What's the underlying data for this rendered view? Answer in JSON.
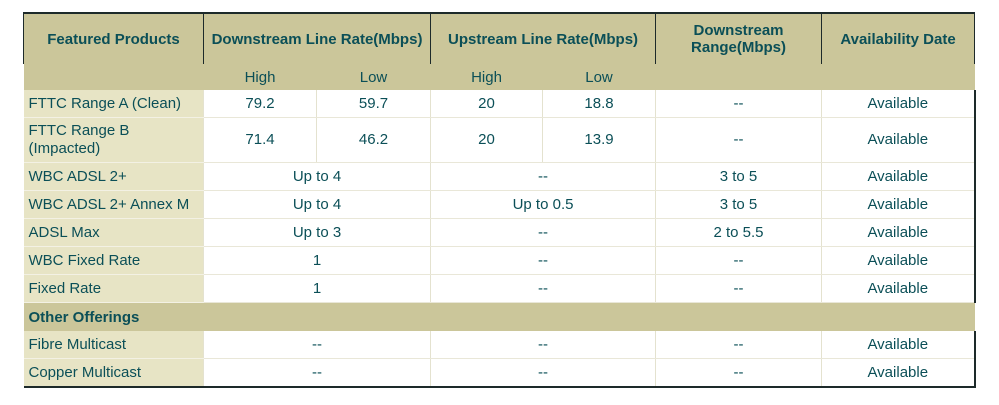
{
  "headers": [
    "Featured Products",
    "Downstream Line Rate(Mbps)",
    "Upstream Line Rate(Mbps)",
    "Downstream Range(Mbps)",
    "Availability Date"
  ],
  "subheaders": [
    "High",
    "Low",
    "High",
    "Low"
  ],
  "rows_split": [
    {
      "product": "FTTC Range A (Clean)",
      "ds_high": "79.2",
      "ds_low": "59.7",
      "us_high": "20",
      "us_low": "18.8",
      "range": "--",
      "availability": "Available"
    },
    {
      "product": "FTTC Range B (Impacted)",
      "ds_high": "71.4",
      "ds_low": "46.2",
      "us_high": "20",
      "us_low": "13.9",
      "range": "--",
      "availability": "Available"
    }
  ],
  "rows_merged": [
    {
      "product": "WBC ADSL 2+",
      "downstream": "Up to 4",
      "upstream": "--",
      "range": "3 to 5",
      "availability": "Available"
    },
    {
      "product": "WBC ADSL 2+ Annex M",
      "downstream": "Up to 4",
      "upstream": "Up to 0.5",
      "range": "3 to 5",
      "availability": "Available"
    },
    {
      "product": "ADSL Max",
      "downstream": "Up to 3",
      "upstream": "--",
      "range": "2 to 5.5",
      "availability": "Available"
    },
    {
      "product": "WBC Fixed Rate",
      "downstream": "1",
      "upstream": "--",
      "range": "--",
      "availability": "Available"
    },
    {
      "product": "Fixed Rate",
      "downstream": "1",
      "upstream": "--",
      "range": "--",
      "availability": "Available"
    }
  ],
  "section_title": "Other Offerings",
  "rows_other": [
    {
      "product": "Fibre Multicast",
      "downstream": "--",
      "upstream": "--",
      "range": "--",
      "availability": "Available"
    },
    {
      "product": "Copper Multicast",
      "downstream": "--",
      "upstream": "--",
      "range": "--",
      "availability": "Available"
    }
  ]
}
